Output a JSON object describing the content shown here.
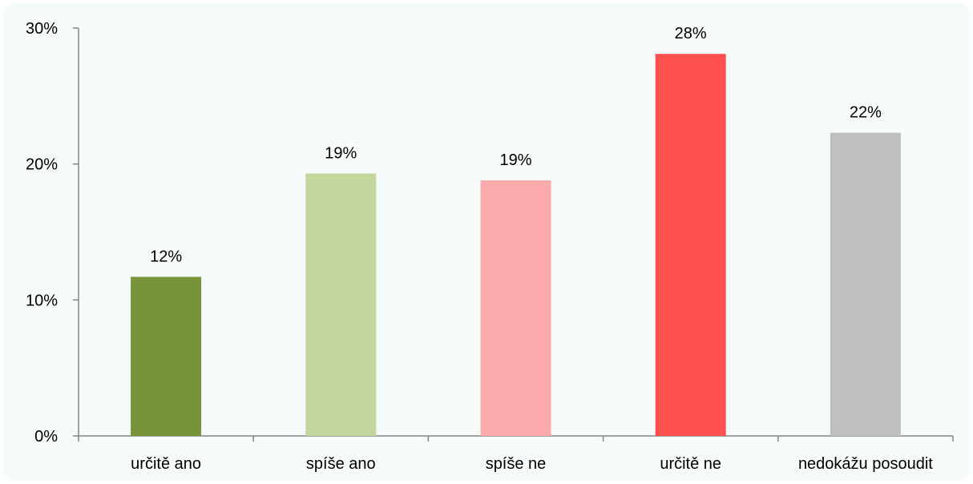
{
  "chart_data": {
    "type": "bar",
    "title": "",
    "xlabel": "",
    "ylabel": "",
    "categories": [
      "určitě ano",
      "spíše ano",
      "spíše ne",
      "určitě ne",
      "nedokážu posoudit"
    ],
    "values": [
      11.7,
      19.3,
      18.8,
      28.1,
      22.3
    ],
    "data_labels": [
      "12%",
      "19%",
      "19%",
      "28%",
      "22%"
    ],
    "colors": [
      "#77933c",
      "#c3d69b",
      "#fbaaab",
      "#ff5050",
      "#bfbfbf"
    ],
    "ylim": [
      0,
      30
    ],
    "yticks": [
      0,
      10,
      20,
      30
    ],
    "ytick_labels": [
      "0%",
      "10%",
      "20%",
      "30%"
    ],
    "grid": false,
    "legend": "none",
    "axis_color": "#868686",
    "background": "#f5fbfb"
  }
}
